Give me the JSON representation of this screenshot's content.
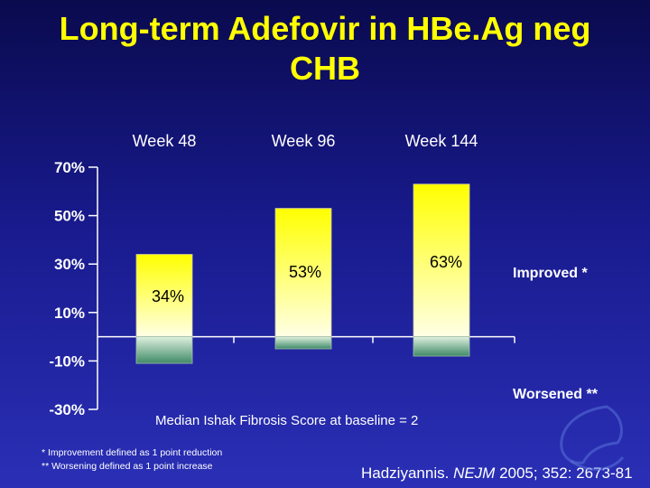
{
  "slide": {
    "title_line1": "Long-term Adefovir in HBe.Ag neg",
    "title_line2": "CHB",
    "footnote1": "* Improvement defined as  1 point reduction",
    "footnote2": "** Worsening defined as  1 point increase",
    "citation_prefix": "Hadziyannis. ",
    "citation_journal": "NEJM",
    "citation_suffix": " 2005; 352: 2673-81",
    "baseline_note": "Median Ishak Fibrosis Score at baseline = 2",
    "logo_icon": "liver-logo-icon"
  },
  "chart_data": {
    "type": "bar",
    "categories": [
      "Week 48",
      "Week 96",
      "Week 144"
    ],
    "series": [
      {
        "name": "Improved *",
        "values": [
          34,
          53,
          63
        ]
      },
      {
        "name": "Worsened **",
        "values": [
          -11,
          -5,
          -8
        ]
      }
    ],
    "data_labels": [
      "34%",
      "53%",
      "63%"
    ],
    "yticks": [
      70,
      50,
      30,
      10,
      -10,
      -30
    ],
    "ytick_labels": [
      "70%",
      "50%",
      "30%",
      "10%",
      "-10%",
      "-30%"
    ],
    "ylim": [
      -30,
      70
    ],
    "zero_value": 0,
    "colors": {
      "improved_top": "#ffff00",
      "improved_bottom": "#ffffe6",
      "worsened_top": "#dff0df",
      "worsened_bottom": "#3f8a68",
      "axis": "#ffffff",
      "text": "#ffffff"
    }
  }
}
